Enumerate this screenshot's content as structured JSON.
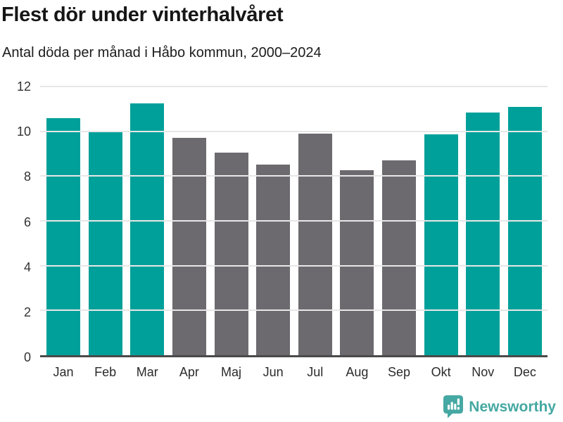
{
  "header": {
    "title": "Flest dör under vinterhalvåret",
    "subtitle": "Antal döda per månad i Håbo kommun, 2000–2024"
  },
  "chart_data": {
    "type": "bar",
    "title": "Flest dör under vinterhalvåret",
    "subtitle": "Antal döda per månad i Håbo kommun, 2000–2024",
    "categories": [
      "Jan",
      "Feb",
      "Mar",
      "Apr",
      "Maj",
      "Jun",
      "Jul",
      "Aug",
      "Sep",
      "Okt",
      "Nov",
      "Dec"
    ],
    "values": [
      10.6,
      9.95,
      11.25,
      9.7,
      9.05,
      8.5,
      9.9,
      8.25,
      8.7,
      9.85,
      10.85,
      11.1
    ],
    "highlighted": [
      true,
      true,
      true,
      false,
      false,
      false,
      false,
      false,
      false,
      true,
      true,
      true
    ],
    "xlabel": "",
    "ylabel": "",
    "ylim": [
      0,
      12
    ],
    "yticks": [
      0,
      2,
      4,
      6,
      8,
      10,
      12
    ],
    "grid": true,
    "legend": "none",
    "colors": {
      "highlight": "#00a09a",
      "muted": "#6d6a6f",
      "gridline": "#e7e7e7",
      "axis": "#4a4a4a",
      "tick_text": "#333333"
    }
  },
  "footer": {
    "brand": "Newsworthy",
    "brand_color": "#45a8a2",
    "logo_icon": "bar-chart-speech-bubble-icon"
  }
}
